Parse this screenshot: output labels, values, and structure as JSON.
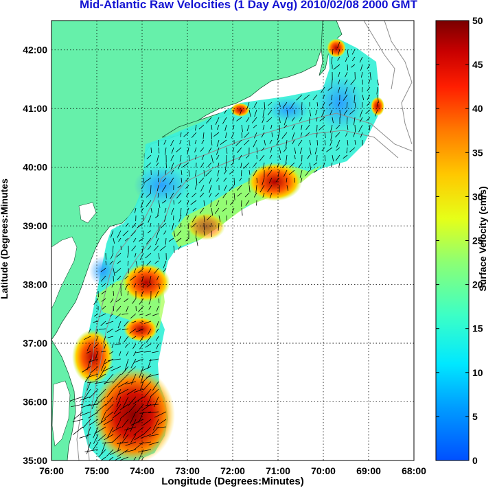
{
  "title": "Mid-Atlantic Raw Velocities (1 Day Avg) 2010/02/08 2000 GMT",
  "title_color": "#1414d2",
  "xlabel": "Longitude (Degrees:Minutes)",
  "ylabel": "Latitude (Degrees:Minutes",
  "colorbar_label": "Surface Velocity (cm/s)",
  "colors": {
    "land": "#66f0aa",
    "water": "#ffffff",
    "grid": "#000000"
  },
  "map": {
    "lon_range": [
      -76,
      -68
    ],
    "lat_range": [
      35,
      42.5
    ],
    "lon_ticks": [
      "76:00",
      "75:00",
      "74:00",
      "73:00",
      "72:00",
      "71:00",
      "70:00",
      "69:00",
      "68:00"
    ],
    "lat_ticks": [
      "35:00",
      "36:00",
      "37:00",
      "38:00",
      "39:00",
      "40:00",
      "41:00",
      "42:00"
    ],
    "grid": true
  },
  "colorbar": {
    "min": 0,
    "max": 50,
    "ticks": [
      "0",
      "5",
      "10",
      "15",
      "20",
      "25",
      "30",
      "35",
      "40",
      "45",
      "50"
    ],
    "colormap": "jet"
  }
}
